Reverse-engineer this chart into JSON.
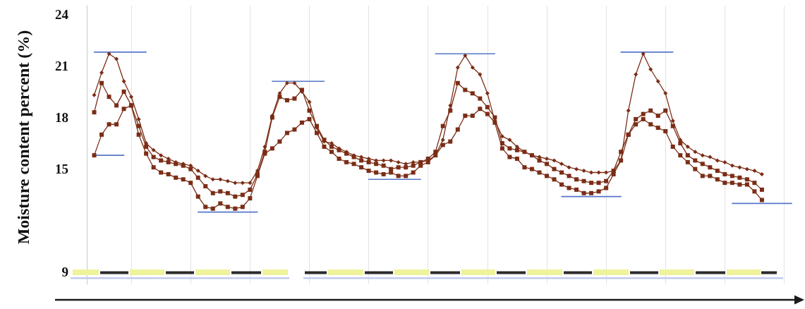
{
  "chart_data": {
    "type": "line",
    "ylabel": "Moisture content percent (%)",
    "categories": [
      null,
      null,
      null,
      null,
      null,
      null,
      null,
      null,
      null,
      null,
      null,
      null,
      null,
      null,
      null,
      null,
      null,
      null,
      null,
      null,
      null,
      null,
      null,
      null,
      null,
      null,
      null,
      null,
      null,
      null,
      null,
      null,
      null,
      null,
      null,
      null,
      null,
      null,
      null,
      null,
      null,
      null,
      null,
      null,
      null,
      null,
      null,
      null,
      null,
      null,
      null,
      null,
      null,
      null,
      null,
      null,
      null,
      null,
      null,
      null,
      null,
      null,
      null,
      null,
      null,
      null,
      null,
      null,
      null,
      null,
      null,
      null,
      null,
      null,
      null,
      null,
      null,
      null,
      null,
      null,
      null,
      null,
      null,
      null,
      null,
      null,
      null,
      null,
      null,
      null,
      null,
      null,
      null,
      null,
      null,
      null
    ],
    "ylim": [
      8.3,
      24.5
    ],
    "yticks": [
      9,
      15,
      18,
      21,
      24
    ],
    "grid": "x",
    "tick_labels": "y",
    "series": [
      {
        "color": "#7b2d16",
        "marker": "diamond",
        "values": [
          null,
          19.3,
          20.6,
          21.7,
          21.4,
          20.1,
          19.2,
          17.9,
          16.5,
          16.1,
          15.8,
          15.6,
          15.4,
          15.3,
          15.2,
          14.9,
          14.6,
          14.4,
          14.4,
          14.3,
          14.2,
          14.2,
          14.2,
          14.9,
          16.3,
          18.1,
          19.4,
          20.0,
          20.0,
          19.5,
          18.9,
          17.4,
          16.6,
          16.5,
          16.2,
          16.0,
          15.8,
          15.7,
          15.6,
          15.5,
          15.5,
          15.5,
          15.4,
          15.3,
          15.4,
          15.4,
          15.5,
          15.8,
          16.7,
          18.7,
          20.9,
          21.6,
          20.9,
          20.5,
          19.4,
          17.8,
          16.9,
          16.7,
          16.3,
          16.0,
          15.8,
          15.7,
          15.6,
          15.5,
          15.3,
          15.1,
          15.0,
          14.9,
          14.8,
          14.8,
          14.8,
          14.9,
          15.5,
          18.4,
          20.5,
          21.7,
          20.8,
          20.1,
          19.4,
          17.8,
          16.7,
          16.3,
          16.0,
          15.8,
          15.7,
          15.5,
          15.4,
          15.2,
          15.1,
          15.0,
          14.9,
          14.7,
          null,
          null,
          null,
          null
        ]
      },
      {
        "color": "#7b2d16",
        "marker": "square",
        "values": [
          null,
          18.3,
          20.0,
          19.2,
          18.7,
          19.5,
          18.7,
          17.5,
          16.3,
          15.7,
          15.5,
          15.4,
          15.3,
          15.2,
          15.0,
          14.5,
          14.0,
          13.6,
          13.7,
          13.6,
          13.4,
          13.5,
          13.8,
          14.7,
          16.0,
          18.0,
          19.2,
          19.0,
          19.1,
          19.6,
          18.4,
          17.5,
          16.7,
          16.3,
          16.1,
          15.9,
          15.7,
          15.5,
          15.4,
          15.3,
          15.2,
          15.0,
          15.1,
          15.1,
          15.2,
          15.4,
          15.6,
          16.0,
          17.5,
          18.4,
          20.0,
          19.6,
          19.4,
          19.1,
          18.6,
          18.0,
          16.5,
          16.2,
          16.1,
          16.0,
          15.8,
          15.5,
          15.3,
          15.0,
          14.8,
          14.6,
          14.4,
          14.3,
          14.2,
          14.2,
          14.3,
          14.9,
          16.0,
          17.0,
          17.9,
          18.2,
          18.4,
          18.1,
          18.4,
          17.5,
          16.5,
          15.8,
          15.5,
          15.3,
          15.1,
          14.9,
          14.7,
          14.6,
          14.5,
          14.4,
          14.2,
          13.8,
          null,
          null,
          null,
          null
        ]
      },
      {
        "color": "#7b2d16",
        "marker": "square",
        "values": [
          null,
          15.8,
          17.0,
          17.6,
          17.6,
          18.5,
          18.7,
          17.0,
          15.9,
          15.1,
          14.8,
          14.7,
          14.5,
          14.4,
          14.2,
          13.4,
          12.8,
          12.7,
          13.0,
          12.8,
          12.7,
          12.8,
          13.3,
          14.6,
          15.9,
          16.2,
          16.6,
          17.1,
          17.3,
          17.7,
          17.9,
          17.1,
          16.3,
          16.0,
          15.6,
          15.4,
          15.3,
          15.1,
          14.9,
          14.8,
          14.7,
          14.8,
          14.6,
          14.6,
          14.8,
          15.2,
          15.4,
          15.8,
          16.4,
          16.6,
          17.3,
          18.1,
          18.1,
          18.5,
          18.2,
          17.7,
          16.2,
          15.7,
          15.6,
          15.1,
          15.0,
          14.8,
          14.6,
          14.4,
          14.1,
          13.9,
          13.8,
          13.6,
          13.6,
          13.7,
          13.9,
          14.7,
          15.5,
          17.0,
          17.6,
          17.9,
          17.6,
          17.4,
          17.2,
          16.3,
          15.8,
          15.4,
          15.0,
          14.6,
          14.6,
          14.4,
          14.2,
          14.2,
          14.1,
          14.1,
          13.7,
          13.2,
          null,
          null,
          null,
          null
        ]
      },
      {
        "color": "#5577c8",
        "marker": "none",
        "values": [
          null,
          21.8,
          21.8,
          21.8,
          21.8,
          21.8,
          21.8,
          21.8,
          21.8,
          null,
          null,
          null,
          null,
          null,
          null,
          null,
          null,
          null,
          null,
          null,
          null,
          null,
          null,
          null,
          null,
          null,
          null,
          null,
          null,
          null,
          null,
          null,
          null,
          null,
          null,
          null,
          null,
          null,
          null,
          null,
          null,
          null,
          null,
          null,
          null,
          null,
          null,
          null,
          null,
          null,
          null,
          null,
          null,
          null,
          null,
          null,
          null,
          null,
          null,
          null,
          null,
          null,
          null,
          null,
          null,
          null,
          null,
          null,
          null,
          null,
          null,
          null,
          null,
          null,
          null,
          null,
          null,
          null,
          null,
          null,
          null,
          null,
          null,
          null,
          null,
          null,
          null,
          null,
          null,
          null,
          null,
          null,
          null,
          null,
          null,
          null
        ]
      },
      {
        "color": "#5577c8",
        "marker": "none",
        "values": [
          null,
          15.8,
          15.8,
          15.8,
          15.8,
          15.8,
          null,
          null,
          null,
          null,
          null,
          null,
          null,
          null,
          null,
          null,
          null,
          null,
          null,
          null,
          null,
          null,
          null,
          null,
          null,
          null,
          null,
          null,
          null,
          null,
          null,
          null,
          null,
          null,
          null,
          null,
          null,
          null,
          null,
          null,
          null,
          null,
          null,
          null,
          null,
          null,
          null,
          null,
          null,
          null,
          null,
          null,
          null,
          null,
          null,
          null,
          null,
          null,
          null,
          null,
          null,
          null,
          null,
          null,
          null,
          null,
          null,
          null,
          null,
          null,
          null,
          null,
          null,
          null,
          null,
          null,
          null,
          null,
          null,
          null,
          null,
          null,
          null,
          null,
          null,
          null,
          null,
          null,
          null,
          null,
          null,
          null,
          null,
          null,
          null,
          null
        ]
      },
      {
        "color": "#5577c8",
        "marker": "none",
        "values": [
          null,
          null,
          null,
          null,
          null,
          null,
          null,
          null,
          null,
          null,
          null,
          null,
          null,
          null,
          null,
          12.5,
          12.5,
          12.5,
          12.5,
          12.5,
          12.5,
          12.5,
          12.5,
          12.5,
          null,
          null,
          null,
          null,
          null,
          null,
          null,
          null,
          null,
          null,
          null,
          null,
          null,
          null,
          null,
          null,
          null,
          null,
          null,
          null,
          null,
          null,
          null,
          null,
          null,
          null,
          null,
          null,
          null,
          null,
          null,
          null,
          null,
          null,
          null,
          null,
          null,
          null,
          null,
          null,
          null,
          null,
          null,
          null,
          null,
          null,
          null,
          null,
          null,
          null,
          null,
          null,
          null,
          null,
          null,
          null,
          null,
          null,
          null,
          null,
          null,
          null,
          null,
          null,
          null,
          null,
          null,
          null,
          null,
          null,
          null,
          null
        ]
      },
      {
        "color": "#5577c8",
        "marker": "none",
        "values": [
          null,
          null,
          null,
          null,
          null,
          null,
          null,
          null,
          null,
          null,
          null,
          null,
          null,
          null,
          null,
          null,
          null,
          null,
          null,
          null,
          null,
          null,
          null,
          null,
          null,
          20.1,
          20.1,
          20.1,
          20.1,
          20.1,
          20.1,
          20.1,
          20.1,
          null,
          null,
          null,
          null,
          null,
          null,
          null,
          null,
          null,
          null,
          null,
          null,
          null,
          null,
          null,
          null,
          null,
          null,
          null,
          null,
          null,
          null,
          null,
          null,
          null,
          null,
          null,
          null,
          null,
          null,
          null,
          null,
          null,
          null,
          null,
          null,
          null,
          null,
          null,
          null,
          null,
          null,
          null,
          null,
          null,
          null,
          null,
          null,
          null,
          null,
          null,
          null,
          null,
          null,
          null,
          null,
          null,
          null,
          null,
          null,
          null,
          null,
          null
        ]
      },
      {
        "color": "#5577c8",
        "marker": "none",
        "values": [
          null,
          null,
          null,
          null,
          null,
          null,
          null,
          null,
          null,
          null,
          null,
          null,
          null,
          null,
          null,
          null,
          null,
          null,
          null,
          null,
          null,
          null,
          null,
          null,
          null,
          null,
          null,
          null,
          null,
          null,
          null,
          null,
          null,
          null,
          null,
          null,
          null,
          null,
          14.4,
          14.4,
          14.4,
          14.4,
          14.4,
          14.4,
          14.4,
          14.4,
          null,
          null,
          null,
          null,
          null,
          null,
          null,
          null,
          null,
          null,
          null,
          null,
          null,
          null,
          null,
          null,
          null,
          null,
          null,
          null,
          null,
          null,
          null,
          null,
          null,
          null,
          null,
          null,
          null,
          null,
          null,
          null,
          null,
          null,
          null,
          null,
          null,
          null,
          null,
          null,
          null,
          null,
          null,
          null,
          null,
          null,
          null,
          null,
          null,
          null
        ]
      },
      {
        "color": "#5577c8",
        "marker": "none",
        "values": [
          null,
          null,
          null,
          null,
          null,
          null,
          null,
          null,
          null,
          null,
          null,
          null,
          null,
          null,
          null,
          null,
          null,
          null,
          null,
          null,
          null,
          null,
          null,
          null,
          null,
          null,
          null,
          null,
          null,
          null,
          null,
          null,
          null,
          null,
          null,
          null,
          null,
          null,
          null,
          null,
          null,
          null,
          null,
          null,
          null,
          null,
          null,
          21.7,
          21.7,
          21.7,
          21.7,
          21.7,
          21.7,
          21.7,
          21.7,
          21.7,
          null,
          null,
          null,
          null,
          null,
          null,
          null,
          null,
          null,
          null,
          null,
          null,
          null,
          null,
          null,
          null,
          null,
          null,
          null,
          null,
          null,
          null,
          null,
          null,
          null,
          null,
          null,
          null,
          null,
          null,
          null,
          null,
          null,
          null,
          null,
          null,
          null,
          null,
          null,
          null
        ]
      },
      {
        "color": "#5577c8",
        "marker": "none",
        "values": [
          null,
          null,
          null,
          null,
          null,
          null,
          null,
          null,
          null,
          null,
          null,
          null,
          null,
          null,
          null,
          null,
          null,
          null,
          null,
          null,
          null,
          null,
          null,
          null,
          null,
          null,
          null,
          null,
          null,
          null,
          null,
          null,
          null,
          null,
          null,
          null,
          null,
          null,
          null,
          null,
          null,
          null,
          null,
          null,
          null,
          null,
          null,
          null,
          null,
          null,
          null,
          null,
          null,
          null,
          null,
          null,
          null,
          null,
          null,
          null,
          null,
          null,
          null,
          null,
          13.4,
          13.4,
          13.4,
          13.4,
          13.4,
          13.4,
          13.4,
          13.4,
          13.4,
          null,
          null,
          null,
          null,
          null,
          null,
          null,
          null,
          null,
          null,
          null,
          null,
          null,
          null,
          null,
          null,
          null,
          null,
          null,
          null,
          null,
          null,
          null
        ]
      },
      {
        "color": "#5577c8",
        "marker": "none",
        "values": [
          null,
          null,
          null,
          null,
          null,
          null,
          null,
          null,
          null,
          null,
          null,
          null,
          null,
          null,
          null,
          null,
          null,
          null,
          null,
          null,
          null,
          null,
          null,
          null,
          null,
          null,
          null,
          null,
          null,
          null,
          null,
          null,
          null,
          null,
          null,
          null,
          null,
          null,
          null,
          null,
          null,
          null,
          null,
          null,
          null,
          null,
          null,
          null,
          null,
          null,
          null,
          null,
          null,
          null,
          null,
          null,
          null,
          null,
          null,
          null,
          null,
          null,
          null,
          null,
          null,
          null,
          null,
          null,
          null,
          null,
          null,
          null,
          21.8,
          21.8,
          21.8,
          21.8,
          21.8,
          21.8,
          21.8,
          21.8,
          null,
          null,
          null,
          null,
          null,
          null,
          null,
          null,
          null,
          null,
          null,
          null,
          null,
          null,
          null,
          null
        ]
      },
      {
        "color": "#5577c8",
        "marker": "none",
        "values": [
          null,
          null,
          null,
          null,
          null,
          null,
          null,
          null,
          null,
          null,
          null,
          null,
          null,
          null,
          null,
          null,
          null,
          null,
          null,
          null,
          null,
          null,
          null,
          null,
          null,
          null,
          null,
          null,
          null,
          null,
          null,
          null,
          null,
          null,
          null,
          null,
          null,
          null,
          null,
          null,
          null,
          null,
          null,
          null,
          null,
          null,
          null,
          null,
          null,
          null,
          null,
          null,
          null,
          null,
          null,
          null,
          null,
          null,
          null,
          null,
          null,
          null,
          null,
          null,
          null,
          null,
          null,
          null,
          null,
          null,
          null,
          null,
          null,
          null,
          null,
          null,
          null,
          null,
          null,
          null,
          null,
          null,
          null,
          null,
          null,
          null,
          null,
          13.0,
          13.0,
          13.0,
          13.0,
          13.0,
          13.0,
          13.0,
          13.0,
          13.0
        ]
      }
    ]
  }
}
